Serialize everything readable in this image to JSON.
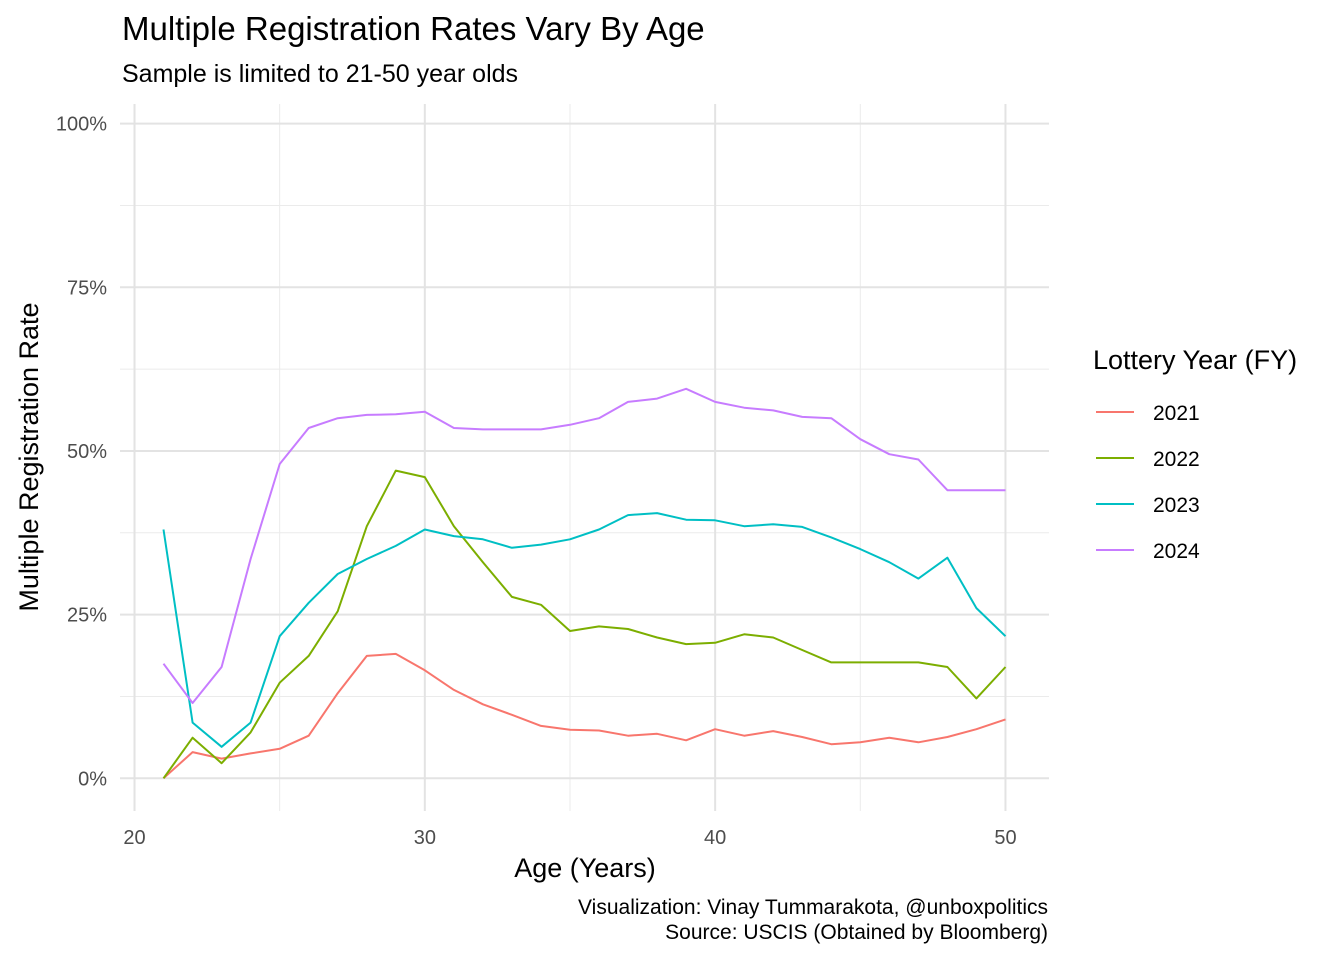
{
  "chart_data": {
    "type": "line",
    "title": "Multiple Registration Rates Vary By Age",
    "subtitle": "Sample is limited to 21-50 year olds",
    "xlabel": "Age (Years)",
    "ylabel": "Multiple Registration Rate",
    "xlim": [
      19.5,
      51.5
    ],
    "ylim": [
      -0.05,
      1.03
    ],
    "x_ticks": [
      20,
      30,
      40,
      50
    ],
    "y_ticks": [
      0,
      0.25,
      0.5,
      0.75,
      1.0
    ],
    "x_tick_labels": [
      "20",
      "30",
      "40",
      "50"
    ],
    "y_tick_labels": [
      "0%",
      "25%",
      "50%",
      "75%",
      "100%"
    ],
    "grid": true,
    "legend": {
      "title": "Lottery Year (FY)",
      "position": "right"
    },
    "x": [
      21,
      22,
      23,
      24,
      25,
      26,
      27,
      28,
      29,
      30,
      31,
      32,
      33,
      34,
      35,
      36,
      37,
      38,
      39,
      40,
      41,
      42,
      43,
      44,
      45,
      46,
      47,
      48,
      49,
      50
    ],
    "series": [
      {
        "name": "2021",
        "color": "#F8766D",
        "values": [
          0.0,
          0.04,
          0.03,
          0.038,
          0.045,
          0.065,
          0.13,
          0.187,
          0.19,
          0.165,
          0.135,
          0.113,
          0.097,
          0.08,
          0.074,
          0.073,
          0.065,
          0.068,
          0.058,
          0.075,
          0.065,
          0.072,
          0.063,
          0.052,
          0.055,
          0.062,
          0.055,
          0.063,
          0.075,
          0.09
        ]
      },
      {
        "name": "2022",
        "color": "#7CAE00",
        "values": [
          0.0,
          0.062,
          0.023,
          0.07,
          0.146,
          0.187,
          0.255,
          0.385,
          0.47,
          0.46,
          0.385,
          0.33,
          0.277,
          0.265,
          0.225,
          0.232,
          0.228,
          0.215,
          0.205,
          0.207,
          0.22,
          0.215,
          0.196,
          0.177,
          0.177,
          0.177,
          0.177,
          0.17,
          0.122,
          0.17
        ]
      },
      {
        "name": "2023",
        "color": "#00BFC4",
        "values": [
          0.38,
          0.085,
          0.048,
          0.085,
          0.217,
          0.268,
          0.312,
          0.335,
          0.355,
          0.38,
          0.37,
          0.365,
          0.352,
          0.357,
          0.365,
          0.38,
          0.402,
          0.405,
          0.395,
          0.394,
          0.385,
          0.388,
          0.384,
          0.368,
          0.35,
          0.33,
          0.305,
          0.337,
          0.26,
          0.217
        ]
      },
      {
        "name": "2024",
        "color": "#C77CFF",
        "values": [
          0.175,
          0.115,
          0.17,
          0.335,
          0.48,
          0.535,
          0.55,
          0.555,
          0.556,
          0.56,
          0.535,
          0.533,
          0.533,
          0.533,
          0.54,
          0.55,
          0.575,
          0.58,
          0.595,
          0.575,
          0.566,
          0.562,
          0.552,
          0.55,
          0.518,
          0.495,
          0.487,
          0.44,
          0.44,
          0.44
        ]
      }
    ],
    "caption": [
      "Visualization: Vinay Tummarakota, @unboxpolitics",
      "Source: USCIS (Obtained by Bloomberg)"
    ]
  }
}
